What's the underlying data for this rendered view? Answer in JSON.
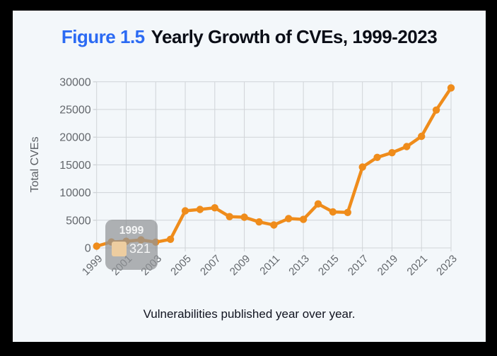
{
  "figure": {
    "label": "Figure 1.5",
    "title": "Yearly Growth of CVEs, 1999-2023",
    "caption": "Vulnerabilities published year over year."
  },
  "tooltip": {
    "year": "1999",
    "value": "321",
    "swatch_color": "#edcda0"
  },
  "chart_data": {
    "type": "line",
    "title": "Yearly Growth of CVEs, 1999-2023",
    "xlabel": "",
    "ylabel": "Total CVEs",
    "x": [
      1999,
      2000,
      2001,
      2002,
      2003,
      2004,
      2005,
      2006,
      2007,
      2008,
      2009,
      2010,
      2011,
      2012,
      2013,
      2014,
      2015,
      2016,
      2017,
      2018,
      2019,
      2020,
      2021,
      2022,
      2023
    ],
    "series": [
      {
        "name": "Total CVEs",
        "values": [
          321,
          1070,
          1200,
          1450,
          1050,
          1550,
          6700,
          6950,
          7250,
          5650,
          5550,
          4700,
          4150,
          5300,
          5150,
          7950,
          6500,
          6400,
          14600,
          16350,
          17200,
          18300,
          20150,
          24900,
          28900
        ]
      }
    ],
    "x_tick_labels": [
      "1999",
      "2001",
      "2003",
      "2005",
      "2007",
      "2009",
      "2011",
      "2013",
      "2015",
      "2017",
      "2019",
      "2021",
      "2023"
    ],
    "y_ticks": [
      0,
      5000,
      10000,
      15000,
      20000,
      25000,
      30000
    ],
    "ylim": [
      0,
      30000
    ],
    "grid": true,
    "legend_position": "none",
    "line_color": "#ef8c1b",
    "grid_color": "#d0d4d8",
    "tick_label_color": "#63676c"
  }
}
